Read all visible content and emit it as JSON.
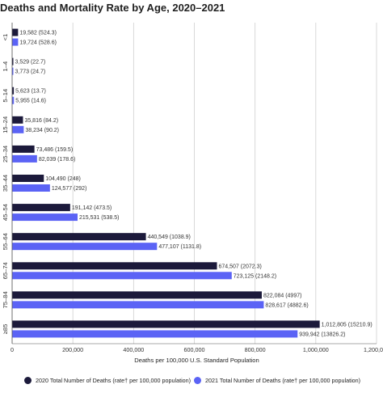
{
  "title": "Deaths and Mortality Rate by Age, 2020–2021",
  "colors": {
    "series_2020": "#1c1a3b",
    "series_2021": "#5b63f5",
    "grid": "#d0d0d0"
  },
  "legend": {
    "item_2020": "2020 Total Number of Deaths (rate† per 100,000 population)",
    "item_2021": "2021 Total Number of Deaths (rate† per 100,000 population)"
  },
  "chart_data": {
    "type": "bar",
    "orientation": "horizontal",
    "title": "Deaths and Mortality Rate by Age, 2020–2021",
    "xlabel": "Deaths per 100,000 U.S. Standard Population",
    "ylabel": "",
    "xlim": [
      0,
      1200000
    ],
    "xticks": [
      0,
      200000,
      400000,
      600000,
      800000,
      1000000,
      1200000
    ],
    "xtick_labels": [
      "0",
      "200,000",
      "400,000",
      "600,000",
      "800,000",
      "1,000,000",
      "1,200,000"
    ],
    "grid": true,
    "legend_position": "bottom",
    "categories": [
      "<1",
      "1–4",
      "5–14",
      "15–24",
      "25–34",
      "35–44",
      "45–54",
      "55–64",
      "65–74",
      "75–84",
      "≥85"
    ],
    "series": [
      {
        "name": "2020 Total Number of Deaths (rate† per 100,000 population)",
        "values": [
          19582,
          3529,
          5623,
          35816,
          73486,
          104490,
          191142,
          440549,
          674507,
          822084,
          1012805
        ],
        "labels": [
          "19,582 (524.3)",
          "3,529 (22.7)",
          "5,623 (13.7)",
          "35,816 (84.2)",
          "73,486 (159.5)",
          "104,490 (248)",
          "191,142 (473.5)",
          "440,549 (1038.9)",
          "674,507 (2072.3)",
          "822,084 (4997)",
          "1,012,805 (15210.9)"
        ]
      },
      {
        "name": "2021 Total Number of Deaths (rate† per 100,000 population)",
        "values": [
          19724,
          3773,
          5955,
          38234,
          82039,
          124577,
          215531,
          477107,
          723125,
          828617,
          939942
        ],
        "labels": [
          "19,724 (528.6)",
          "3,773 (24.7)",
          "5,955 (14.6)",
          "38,234 (90.2)",
          "82,039 (178.6)",
          "124,577 (292)",
          "215,531 (538.5)",
          "477,107 (1131.8)",
          "723,125 (2148.2)",
          "828,617 (4882.6)",
          "939,942 (13826.2)"
        ]
      }
    ]
  }
}
